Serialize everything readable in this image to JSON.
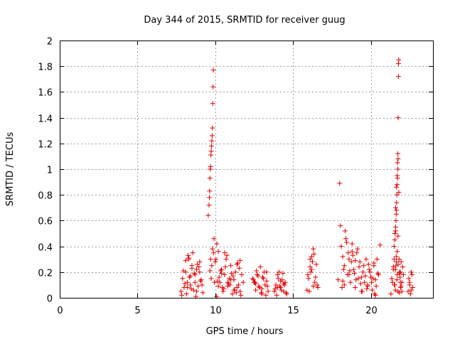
{
  "chart_data": {
    "type": "scatter",
    "title": "Day 344 of 2015, SRMTID for receiver guug",
    "xlabel": "GPS time / hours",
    "ylabel": "SRMTID / TECUs",
    "xlim": [
      0,
      24
    ],
    "ylim": [
      0,
      2
    ],
    "xticks": [
      0,
      5,
      10,
      15,
      20
    ],
    "yticks": [
      0,
      0.2,
      0.4,
      0.6,
      0.8,
      1,
      1.2,
      1.4,
      1.6,
      1.8,
      2
    ],
    "xtick_labels": [
      "0",
      "5",
      "10",
      "15",
      "20"
    ],
    "ytick_labels": [
      "0",
      "0.2",
      "0.4",
      "0.6",
      "0.8",
      "1",
      "1.2",
      "1.4",
      "1.6",
      "1.8",
      "2"
    ],
    "grid": true,
    "marker": "plus",
    "color": "#e00000",
    "series": [
      {
        "x": [
          7.8,
          7.9,
          8.0,
          8.1,
          8.2,
          8.3,
          8.4,
          8.5,
          8.6,
          8.7,
          8.8,
          8.9,
          9.0,
          9.1,
          9.2,
          7.85,
          8.05,
          8.25,
          8.45,
          8.65,
          8.85,
          9.05,
          7.95,
          8.15,
          8.35,
          8.55,
          8.75,
          8.95,
          9.15,
          8.1,
          8.4,
          8.7,
          9.0,
          8.2,
          8.5,
          8.8,
          8.3,
          9.55,
          9.6,
          9.62,
          9.64,
          9.66,
          9.68,
          9.7,
          9.72,
          9.74,
          9.76,
          9.78,
          9.8,
          9.82,
          9.84,
          9.86,
          9.88,
          9.9,
          9.92,
          9.66,
          9.7,
          9.74,
          9.78,
          9.82,
          9.95,
          10.0,
          10.1,
          10.2,
          10.3,
          10.4,
          10.5,
          10.6,
          10.7,
          10.8,
          10.9,
          11.0,
          11.1,
          11.2,
          11.3,
          11.4,
          11.5,
          11.6,
          11.7,
          11.8,
          10.05,
          10.25,
          10.45,
          10.65,
          10.85,
          11.05,
          11.25,
          11.45,
          11.65,
          10.15,
          10.35,
          10.55,
          10.75,
          10.95,
          11.15,
          11.35,
          11.55,
          10.2,
          10.6,
          11.0,
          11.4,
          10.1,
          10.4,
          10.8,
          11.2,
          11.6,
          12.4,
          12.5,
          12.6,
          12.7,
          12.8,
          12.9,
          13.0,
          13.1,
          13.2,
          13.3,
          13.4,
          12.45,
          12.65,
          12.85,
          13.05,
          13.25,
          12.55,
          12.75,
          12.95,
          13.15,
          13.35,
          12.6,
          13.0,
          13.3,
          13.8,
          13.9,
          14.0,
          14.1,
          14.2,
          14.3,
          14.4,
          14.5,
          14.6,
          13.85,
          14.05,
          14.25,
          14.45,
          13.95,
          14.15,
          14.35,
          14.55,
          14.0,
          14.2,
          14.4,
          15.9,
          16.0,
          16.1,
          16.2,
          16.3,
          16.4,
          16.5,
          16.6,
          15.95,
          16.15,
          16.35,
          16.55,
          16.05,
          16.25,
          16.45,
          16.1,
          16.3,
          16.2,
          17.9,
          18.0,
          18.05,
          18.1,
          18.2,
          18.3,
          18.4,
          18.5,
          18.6,
          18.7,
          18.8,
          18.9,
          19.0,
          19.1,
          19.2,
          19.3,
          19.4,
          19.5,
          19.6,
          19.7,
          19.8,
          19.9,
          20.0,
          20.1,
          20.2,
          20.3,
          20.4,
          20.5,
          20.6,
          18.15,
          18.35,
          18.55,
          18.75,
          18.95,
          19.15,
          19.35,
          19.55,
          19.75,
          19.95,
          20.15,
          20.35,
          18.25,
          18.45,
          18.65,
          18.85,
          19.05,
          19.25,
          19.45,
          19.65,
          19.85,
          20.05,
          20.25,
          20.45,
          18.3,
          18.6,
          19.0,
          19.4,
          19.8,
          20.2,
          18.2,
          18.8,
          20.3,
          21.3,
          21.4,
          21.5,
          21.55,
          21.6,
          21.65,
          21.7,
          21.72,
          21.74,
          21.76,
          21.78,
          21.8,
          21.85,
          21.9,
          21.95,
          22.0,
          22.1,
          21.6,
          21.62,
          21.64,
          21.66,
          21.68,
          21.7,
          21.72,
          21.74,
          21.76,
          21.78,
          21.8,
          21.5,
          21.55,
          21.6,
          21.65,
          21.58,
          21.62,
          21.68,
          21.7,
          21.75,
          21.82,
          21.88,
          21.92,
          21.45,
          21.52,
          21.58,
          21.64,
          21.7,
          21.76,
          21.84,
          21.9,
          22.0,
          21.35,
          21.45,
          21.55,
          21.65,
          21.75,
          21.85,
          21.95,
          22.05,
          22.4,
          22.5,
          22.6,
          22.7,
          22.45,
          22.55,
          22.65,
          22.5,
          22.6
        ],
        "y": [
          0.05,
          0.15,
          0.08,
          0.2,
          0.12,
          0.3,
          0.1,
          0.25,
          0.06,
          0.18,
          0.22,
          0.09,
          0.28,
          0.14,
          0.04,
          0.02,
          0.11,
          0.33,
          0.07,
          0.19,
          0.26,
          0.13,
          0.21,
          0.03,
          0.16,
          0.35,
          0.01,
          0.24,
          0.1,
          0.29,
          0.17,
          0.12,
          0.2,
          0.08,
          0.23,
          0.05,
          0.31,
          0.64,
          0.72,
          0.78,
          0.83,
          0.93,
          1.0,
          1.02,
          1.11,
          1.14,
          1.18,
          1.22,
          1.26,
          1.32,
          1.51,
          1.64,
          1.77,
          0.35,
          0.46,
          0.21,
          0.3,
          0.15,
          0.25,
          0.38,
          0.12,
          0.28,
          0.42,
          0.36,
          0.12,
          0.22,
          0.05,
          0.18,
          0.3,
          0.09,
          0.15,
          0.25,
          0.03,
          0.14,
          0.2,
          0.08,
          0.1,
          0.05,
          0.18,
          0.12,
          0.3,
          0.16,
          0.08,
          0.24,
          0.11,
          0.19,
          0.06,
          0.27,
          0.02,
          0.13,
          0.21,
          0.07,
          0.33,
          0.1,
          0.17,
          0.04,
          0.23,
          0.09,
          0.35,
          0.14,
          0.26,
          0.01,
          0.19,
          0.12,
          0.06,
          0.29,
          0.15,
          0.12,
          0.06,
          0.18,
          0.09,
          0.24,
          0.03,
          0.15,
          0.1,
          0.2,
          0.05,
          0.14,
          0.21,
          0.08,
          0.16,
          0.02,
          0.12,
          0.17,
          0.04,
          0.2,
          0.09,
          0.11,
          0.07,
          0.13,
          0.05,
          0.1,
          0.18,
          0.2,
          0.08,
          0.14,
          0.05,
          0.12,
          0.03,
          0.07,
          0.15,
          0.06,
          0.1,
          0.02,
          0.09,
          0.19,
          0.04,
          0.08,
          0.13,
          0.11,
          0.06,
          0.15,
          0.3,
          0.22,
          0.38,
          0.12,
          0.26,
          0.08,
          0.18,
          0.2,
          0.34,
          0.1,
          0.05,
          0.28,
          0.16,
          0.24,
          0.09,
          0.32,
          0.14,
          0.89,
          0.56,
          0.4,
          0.32,
          0.25,
          0.46,
          0.18,
          0.3,
          0.12,
          0.42,
          0.22,
          0.08,
          0.35,
          0.15,
          0.28,
          0.05,
          0.2,
          0.12,
          0.3,
          0.1,
          0.22,
          0.16,
          0.06,
          0.25,
          0.14,
          0.3,
          0.18,
          0.41,
          0.08,
          0.52,
          0.35,
          0.28,
          0.19,
          0.38,
          0.11,
          0.25,
          0.07,
          0.2,
          0.15,
          0.09,
          0.22,
          0.43,
          0.21,
          0.33,
          0.14,
          0.24,
          0.05,
          0.17,
          0.26,
          0.12,
          0.03,
          0.19,
          0.1,
          0.18,
          0.29,
          0.16,
          0.09,
          0.27,
          0.13,
          0.36,
          0.02,
          0.03,
          0.12,
          0.3,
          0.5,
          0.7,
          0.86,
          0.95,
          1.05,
          1.12,
          1.4,
          1.72,
          1.85,
          0.2,
          0.12,
          0.28,
          0.05,
          0.18,
          0.55,
          0.6,
          0.65,
          0.74,
          0.8,
          0.88,
          0.93,
          1.0,
          1.08,
          1.82,
          0.82,
          0.4,
          0.45,
          0.52,
          0.68,
          0.22,
          0.25,
          0.14,
          0.36,
          0.48,
          0.3,
          0.16,
          0.08,
          0.24,
          0.1,
          0.06,
          0.32,
          0.18,
          0.26,
          0.04,
          0.2,
          0.12,
          0.15,
          0.22,
          0.1,
          0.28,
          0.05,
          0.19,
          0.09,
          0.24,
          0.05,
          0.12,
          0.2,
          0.08,
          0.15,
          0.03,
          0.18,
          0.1,
          0.06
        ]
      }
    ]
  }
}
